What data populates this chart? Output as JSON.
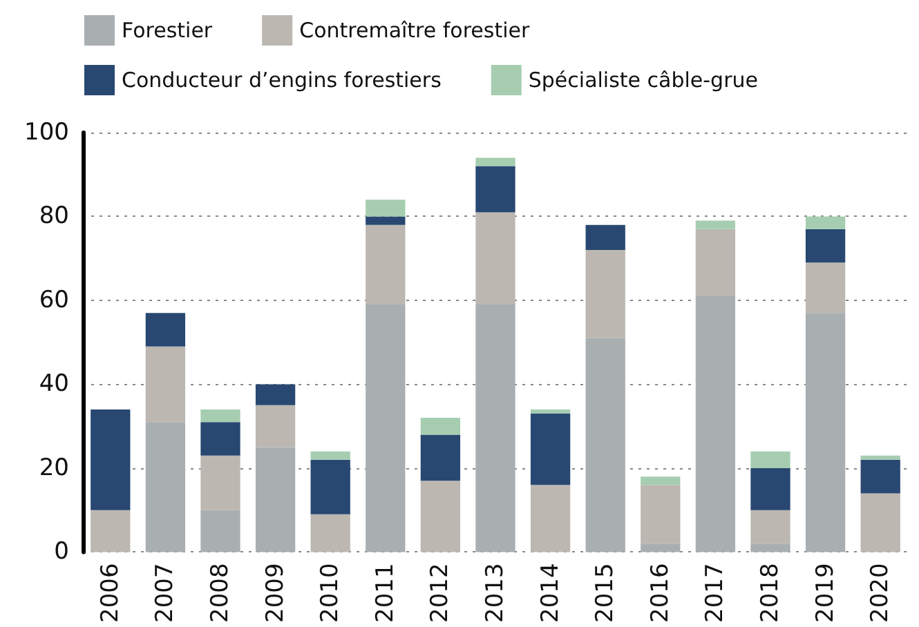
{
  "chart_data": {
    "type": "bar",
    "stacked": true,
    "categories": [
      "2006",
      "2007",
      "2008",
      "2009",
      "2010",
      "2011",
      "2012",
      "2013",
      "2014",
      "2015",
      "2016",
      "2017",
      "2018",
      "2019",
      "2020"
    ],
    "series": [
      {
        "name": "Forestier",
        "color": "#a9aeb1",
        "values": [
          0,
          31,
          10,
          25,
          0,
          59,
          0,
          59,
          0,
          51,
          2,
          61,
          2,
          57,
          0
        ]
      },
      {
        "name": "Contremaître forestier",
        "color": "#bcb7b1",
        "values": [
          10,
          18,
          13,
          10,
          9,
          19,
          17,
          22,
          16,
          21,
          14,
          16,
          8,
          12,
          14
        ]
      },
      {
        "name": "Conducteur d’engins forestiers",
        "color": "#284872",
        "values": [
          24,
          8,
          8,
          5,
          13,
          2,
          11,
          11,
          17,
          6,
          0,
          0,
          10,
          8,
          8
        ]
      },
      {
        "name": "Spécialiste câble-grue",
        "color": "#a6cdb0",
        "values": [
          0,
          0,
          3,
          0,
          2,
          4,
          4,
          2,
          1,
          0,
          2,
          2,
          4,
          3,
          1
        ]
      }
    ],
    "ylim": [
      0,
      100
    ],
    "yticks": [
      0,
      20,
      40,
      60,
      80,
      100
    ],
    "grid": "y",
    "legend": "top"
  }
}
